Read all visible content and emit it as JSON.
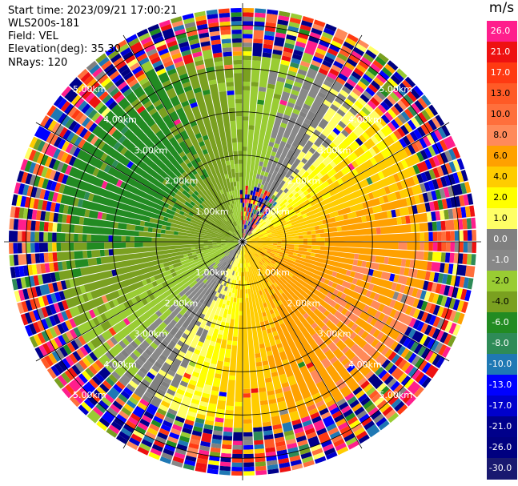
{
  "header": {
    "start_time": "Start time: 2023/09/21 17:00:21",
    "site": "WLS200s-181",
    "field": "Field: VEL",
    "elevation": "Elevation(deg): 35.30",
    "nrays": "NRays: 120"
  },
  "colorbar": {
    "unit": "m/s",
    "labels": [
      "26.0",
      "21.0",
      "17.0",
      "13.0",
      "10.0",
      "8.0",
      "6.0",
      "4.0",
      "2.0",
      "1.0",
      "0.0",
      "-1.0",
      "-2.0",
      "-4.0",
      "-6.0",
      "-8.0",
      "-10.0",
      "-13.0",
      "-17.0",
      "-21.0",
      "-26.0",
      "-30.0"
    ],
    "colors": [
      "#ff1e8c",
      "#ee1111",
      "#ff3a12",
      "#ff5a26",
      "#ff6f3c",
      "#ff8a5a",
      "#ffa100",
      "#ffcc00",
      "#ffff00",
      "#ffff66",
      "#808080",
      "#888888",
      "#99cc33",
      "#7aa020",
      "#228b22",
      "#2e8b57",
      "#1f78b4",
      "#0000ff",
      "#0000cc",
      "#00008b",
      "#000080",
      "#191970"
    ]
  },
  "chart_data": {
    "type": "heatmap",
    "projection": "polar-ppi",
    "field": "VEL",
    "units": "m/s",
    "nrays": 120,
    "elevation_deg": 35.3,
    "range_max_km": 5.4,
    "range_rings_km": [
      1,
      2,
      3,
      4,
      5
    ],
    "ring_labels": [
      "1.00km",
      "2.00km",
      "3.00km",
      "4.00km",
      "5.00km"
    ],
    "color_range": [
      -30,
      26
    ],
    "pattern": {
      "positive_azimuth_center_deg": 120,
      "velocity_amplitude": 6.5,
      "offset": -0.5,
      "clean_range_km": [
        3.6,
        4.2
      ],
      "noise_start_km": 4.3
    }
  }
}
